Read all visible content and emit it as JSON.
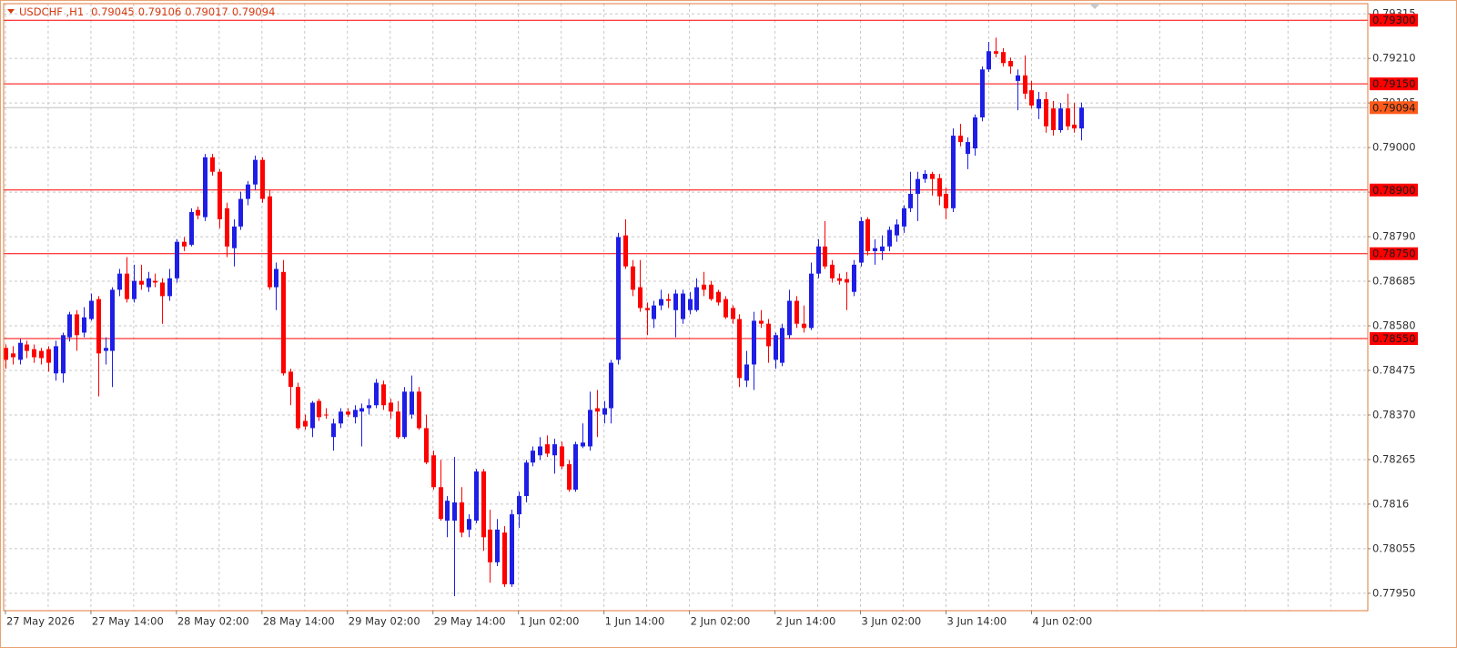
{
  "chart_data": {
    "type": "candlestick",
    "title": "USDCHF ,H1",
    "up_color": "#1e1ee6",
    "down_color": "#ff0000",
    "grid": true,
    "xlim": [
      -0.25,
      191.2
    ],
    "xticks": [
      {
        "value": 0,
        "label": "27 May 2026"
      },
      {
        "value": 12,
        "label": "27 May 14:00"
      },
      {
        "value": 24,
        "label": "28 May 02:00"
      },
      {
        "value": 36,
        "label": "28 May 14:00"
      },
      {
        "value": 48,
        "label": "29 May 02:00"
      },
      {
        "value": 60,
        "label": "29 May 14:00"
      },
      {
        "value": 72,
        "label": "1 Jun 02:00"
      },
      {
        "value": 84,
        "label": "1 Jun 14:00"
      },
      {
        "value": 96,
        "label": "2 Jun 02:00"
      },
      {
        "value": 108,
        "label": "2 Jun 14:00"
      },
      {
        "value": 120,
        "label": "3 Jun 02:00"
      },
      {
        "value": 132,
        "label": "3 Jun 14:00"
      },
      {
        "value": 144,
        "label": "4 Jun 02:00"
      }
    ],
    "ylim": [
      0.77909,
      0.79339
    ],
    "yticks": [
      {
        "value": 0.7795,
        "label": "0.77950"
      },
      0.78055,
      0.7816,
      0.78265,
      {
        "value": 0.7837,
        "label": "0.78370"
      },
      0.78475,
      {
        "value": 0.7858,
        "label": "0.78580"
      },
      0.78685,
      {
        "value": 0.7879,
        "label": "0.78790"
      },
      0.78895,
      {
        "value": 0.79,
        "label": "0.79000"
      },
      0.79105,
      {
        "value": 0.7921,
        "label": "0.79210"
      },
      0.79315
    ],
    "levels": [
      {
        "value": 0.793,
        "label": "0.79300"
      },
      {
        "value": 0.7915,
        "label": "0.79150"
      },
      {
        "value": 0.789,
        "label": "0.78900"
      },
      {
        "value": 0.7875,
        "label": "0.78750"
      },
      {
        "value": 0.7855,
        "label": "0.78550"
      }
    ],
    "level_color": "#ff0000",
    "current_price_color": "#ff5a1a",
    "open": [
      0.78528,
      0.78515,
      0.785,
      0.78536,
      0.78525,
      0.78521,
      0.78525,
      0.78468,
      0.78468,
      0.78553,
      0.78607,
      0.78564,
      0.78596,
      0.78643,
      0.78521,
      0.78521,
      0.78665,
      0.78703,
      0.78643,
      0.78686,
      0.78671,
      0.78686,
      0.78682,
      0.7865,
      0.78692,
      0.78778,
      0.78771,
      0.78853,
      0.78836,
      0.78977,
      0.78943,
      0.78857,
      0.78763,
      0.78814,
      0.78879,
      0.78913,
      0.78971,
      0.78885,
      0.78671,
      0.78707,
      0.78472,
      0.78436,
      0.78356,
      0.78339,
      0.78403,
      0.78371,
      0.78318,
      0.7835,
      0.78378,
      0.78365,
      0.78378,
      0.78386,
      0.78393,
      0.78442,
      0.78399,
      0.78378,
      0.78318,
      0.78371,
      0.78425,
      0.78339,
      0.78275,
      0.782,
      0.78121,
      0.78121,
      0.78164,
      0.781,
      0.78121,
      0.78237,
      0.781,
      0.78023,
      0.78093,
      0.77971,
      0.78136,
      0.78179,
      0.78258,
      0.78275,
      0.78301,
      0.78275,
      0.78296,
      0.78254,
      0.78194,
      0.78296,
      0.78296,
      0.78386,
      0.78371,
      0.78386,
      0.785,
      0.78793,
      0.7872,
      0.78671,
      0.78622,
      0.78596,
      0.78628,
      0.78643,
      0.78617,
      0.78596,
      0.78617,
      0.78617,
      0.78677,
      0.78677,
      0.7866,
      0.78643,
      0.78622,
      0.78596,
      0.78451,
      0.78489,
      0.78592,
      0.78585,
      0.785,
      0.78493,
      0.78558,
      0.78639,
      0.78585,
      0.78575,
      0.78703,
      0.78767,
      0.78724,
      0.78692,
      0.7869,
      0.7866,
      0.78729,
      0.78831,
      0.78756,
      0.78756,
      0.78767,
      0.78793,
      0.78814,
      0.78857,
      0.78891,
      0.78926,
      0.78938,
      0.78928,
      0.78891,
      0.78857,
      0.79028,
      0.78985,
      0.78998,
      0.79071,
      0.79184,
      0.79227,
      0.79225,
      0.79204,
      0.79157,
      0.7917,
      0.79135,
      0.79092,
      0.79114,
      0.79092,
      0.79041,
      0.79092,
      0.79054,
      0.79045
    ],
    "high": [
      0.78536,
      0.78532,
      0.78549,
      0.78545,
      0.78536,
      0.78528,
      0.78532,
      0.78545,
      0.78564,
      0.78613,
      0.78617,
      0.78624,
      0.78656,
      0.7865,
      0.78553,
      0.78671,
      0.78714,
      0.78742,
      0.78724,
      0.78724,
      0.78707,
      0.78703,
      0.78692,
      0.78714,
      0.78784,
      0.78789,
      0.78857,
      0.78861,
      0.78985,
      0.78985,
      0.78949,
      0.7887,
      0.78831,
      0.78896,
      0.78921,
      0.78981,
      0.78977,
      0.789,
      0.78729,
      0.78735,
      0.78479,
      0.78446,
      0.78371,
      0.78403,
      0.78408,
      0.78386,
      0.78361,
      0.78386,
      0.78386,
      0.78393,
      0.78397,
      0.78408,
      0.78455,
      0.78451,
      0.78408,
      0.78403,
      0.78436,
      0.78463,
      0.78436,
      0.78371,
      0.78286,
      0.78264,
      0.78179,
      0.78271,
      0.782,
      0.78136,
      0.78243,
      0.78243,
      0.78147,
      0.78125,
      0.78108,
      0.78147,
      0.78189,
      0.78264,
      0.78296,
      0.78318,
      0.78322,
      0.78314,
      0.78307,
      0.78264,
      0.78307,
      0.7835,
      0.78425,
      0.78429,
      0.78403,
      0.785,
      0.78799,
      0.78831,
      0.78735,
      0.78735,
      0.78635,
      0.78639,
      0.78665,
      0.78656,
      0.78665,
      0.78665,
      0.7866,
      0.78692,
      0.78707,
      0.78686,
      0.78665,
      0.7865,
      0.78628,
      0.78607,
      0.78521,
      0.78613,
      0.78617,
      0.78596,
      0.78564,
      0.78585,
      0.78665,
      0.7865,
      0.78628,
      0.78729,
      0.78784,
      0.78827,
      0.78735,
      0.78703,
      0.78707,
      0.78735,
      0.78836,
      0.78836,
      0.78784,
      0.78793,
      0.78814,
      0.78831,
      0.78864,
      0.78943,
      0.78943,
      0.78947,
      0.78943,
      0.78938,
      0.78906,
      0.79045,
      0.79056,
      0.79024,
      0.79078,
      0.79191,
      0.79249,
      0.79259,
      0.79234,
      0.79212,
      0.79184,
      0.79217,
      0.79157,
      0.79131,
      0.79131,
      0.7911,
      0.79105,
      0.79127,
      0.79105,
      0.79106
    ],
    "low": [
      0.78479,
      0.78489,
      0.78489,
      0.78504,
      0.78493,
      0.78489,
      0.78472,
      0.78451,
      0.78446,
      0.78543,
      0.78521,
      0.78553,
      0.78592,
      0.78414,
      0.78489,
      0.78436,
      0.7865,
      0.78635,
      0.78635,
      0.78665,
      0.7866,
      0.78671,
      0.78585,
      0.78639,
      0.78682,
      0.78756,
      0.78767,
      0.78831,
      0.78827,
      0.78934,
      0.7881,
      0.78742,
      0.7872,
      0.78806,
      0.78864,
      0.789,
      0.7887,
      0.78665,
      0.78617,
      0.78463,
      0.78393,
      0.78335,
      0.78335,
      0.78318,
      0.78356,
      0.78361,
      0.78286,
      0.78339,
      0.78365,
      0.7835,
      0.78296,
      0.78371,
      0.78386,
      0.78382,
      0.78361,
      0.78314,
      0.78314,
      0.78361,
      0.78335,
      0.78254,
      0.78194,
      0.78121,
      0.78082,
      0.77943,
      0.78082,
      0.78082,
      0.78115,
      0.7805,
      0.77975,
      0.78014,
      0.77965,
      0.77965,
      0.78104,
      0.78164,
      0.78249,
      0.78264,
      0.78271,
      0.78232,
      0.78243,
      0.78189,
      0.78189,
      0.78292,
      0.78286,
      0.78318,
      0.7835,
      0.7835,
      0.78489,
      0.78714,
      0.7865,
      0.78613,
      0.78558,
      0.78575,
      0.78617,
      0.78622,
      0.78553,
      0.78585,
      0.78607,
      0.78613,
      0.7865,
      0.78639,
      0.78628,
      0.78596,
      0.78585,
      0.78436,
      0.78436,
      0.78429,
      0.78575,
      0.78493,
      0.78479,
      0.78485,
      0.78549,
      0.78575,
      0.78564,
      0.7857,
      0.78692,
      0.78714,
      0.78682,
      0.78677,
      0.78617,
      0.7865,
      0.7872,
      0.78746,
      0.78724,
      0.78735,
      0.78756,
      0.78778,
      0.78799,
      0.78848,
      0.78827,
      0.78917,
      0.78887,
      0.78864,
      0.78831,
      0.78848,
      0.79003,
      0.78949,
      0.78981,
      0.79062,
      0.79178,
      0.79212,
      0.79191,
      0.79174,
      0.79088,
      0.79114,
      0.79092,
      0.79067,
      0.79035,
      0.79028,
      0.79035,
      0.79041,
      0.79035,
      0.79017
    ],
    "close": [
      0.785,
      0.78506,
      0.7854,
      0.78521,
      0.78506,
      0.78504,
      0.78493,
      0.78532,
      0.78558,
      0.78607,
      0.78558,
      0.786,
      0.78639,
      0.78515,
      0.78528,
      0.78665,
      0.78703,
      0.78643,
      0.78686,
      0.78677,
      0.78692,
      0.78682,
      0.7865,
      0.78692,
      0.78778,
      0.78767,
      0.78848,
      0.7884,
      0.78977,
      0.78943,
      0.78831,
      0.78767,
      0.78814,
      0.78879,
      0.78913,
      0.78971,
      0.78879,
      0.78671,
      0.78714,
      0.78468,
      0.78436,
      0.78339,
      0.78343,
      0.78399,
      0.78365,
      0.78369,
      0.7835,
      0.78378,
      0.78371,
      0.78382,
      0.78386,
      0.78393,
      0.78446,
      0.78393,
      0.78378,
      0.78318,
      0.78425,
      0.78425,
      0.78339,
      0.78258,
      0.782,
      0.78125,
      0.78168,
      0.78164,
      0.78093,
      0.78125,
      0.78237,
      0.78082,
      0.78023,
      0.781,
      0.77971,
      0.78136,
      0.78179,
      0.78258,
      0.78286,
      0.78296,
      0.78279,
      0.78301,
      0.78249,
      0.78194,
      0.78301,
      0.78305,
      0.78382,
      0.78378,
      0.78386,
      0.78493,
      0.78789,
      0.7872,
      0.78665,
      0.78622,
      0.78617,
      0.78628,
      0.78643,
      0.78639,
      0.78656,
      0.78656,
      0.78643,
      0.78671,
      0.78665,
      0.78643,
      0.78635,
      0.786,
      0.78596,
      0.78457,
      0.78489,
      0.78592,
      0.78585,
      0.78532,
      0.78558,
      0.78575,
      0.78639,
      0.78585,
      0.78575,
      0.78703,
      0.78767,
      0.7872,
      0.78692,
      0.78686,
      0.78682,
      0.78724,
      0.78827,
      0.78756,
      0.78763,
      0.78767,
      0.78806,
      0.78819,
      0.78857,
      0.78891,
      0.78926,
      0.78938,
      0.78926,
      0.78885,
      0.78857,
      0.79028,
      0.79013,
      0.79013,
      0.79071,
      0.79184,
      0.79227,
      0.79221,
      0.79199,
      0.79191,
      0.7917,
      0.79127,
      0.79099,
      0.79114,
      0.7905,
      0.79041,
      0.79092,
      0.7905,
      0.79045,
      0.79094
    ]
  }
}
